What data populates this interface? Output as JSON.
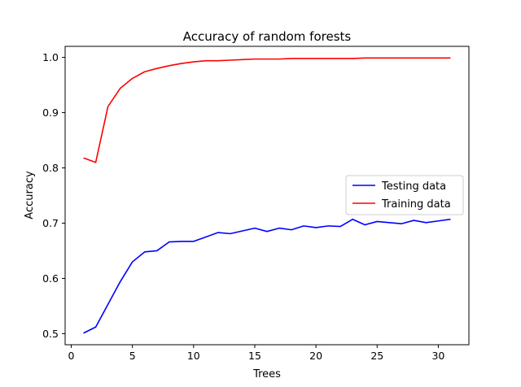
{
  "chart_data": {
    "type": "line",
    "title": "Accuracy of random forests",
    "xlabel": "Trees",
    "ylabel": "Accuracy",
    "xlim": [
      -0.5,
      32.5
    ],
    "ylim": [
      0.48,
      1.02
    ],
    "xticks": [
      0,
      5,
      10,
      15,
      20,
      25,
      30
    ],
    "yticks": [
      0.5,
      0.6,
      0.7,
      0.8,
      0.9,
      1.0
    ],
    "xtick_labels": [
      "0",
      "5",
      "10",
      "15",
      "20",
      "25",
      "30"
    ],
    "ytick_labels": [
      "0.5",
      "0.6",
      "0.7",
      "0.8",
      "0.9",
      "1.0"
    ],
    "grid": false,
    "legend_position": "center-right",
    "x": [
      1,
      2,
      3,
      4,
      5,
      6,
      7,
      8,
      9,
      10,
      11,
      12,
      13,
      14,
      15,
      16,
      17,
      18,
      19,
      20,
      21,
      22,
      23,
      24,
      25,
      26,
      27,
      28,
      29,
      30,
      31
    ],
    "series": [
      {
        "name": "Testing data",
        "color": "#0000ff",
        "values": [
          0.501,
          0.512,
          0.553,
          0.594,
          0.63,
          0.648,
          0.65,
          0.666,
          0.667,
          0.667,
          0.675,
          0.683,
          0.681,
          0.686,
          0.691,
          0.685,
          0.691,
          0.688,
          0.695,
          0.692,
          0.695,
          0.694,
          0.707,
          0.697,
          0.703,
          0.701,
          0.699,
          0.705,
          0.701,
          0.704,
          0.707
        ]
      },
      {
        "name": "Training data",
        "color": "#ff0000",
        "values": [
          0.818,
          0.81,
          0.911,
          0.944,
          0.962,
          0.974,
          0.98,
          0.985,
          0.989,
          0.992,
          0.994,
          0.994,
          0.995,
          0.996,
          0.997,
          0.997,
          0.997,
          0.998,
          0.998,
          0.998,
          0.998,
          0.998,
          0.998,
          0.999,
          0.999,
          0.999,
          0.999,
          0.999,
          0.999,
          0.999,
          0.999
        ]
      }
    ]
  }
}
